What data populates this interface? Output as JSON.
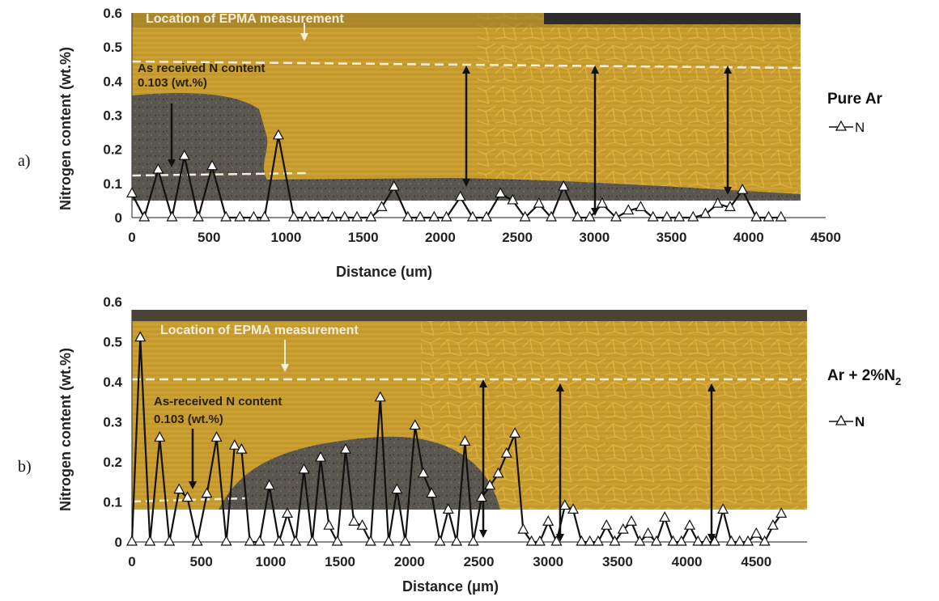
{
  "chart_data": [
    {
      "type": "line",
      "panel_label": "a)",
      "xlabel": "Distance (um)",
      "ylabel": "Nitrogen content (wt.%)",
      "xlim": [
        0,
        4500
      ],
      "ylim": [
        0,
        0.6
      ],
      "x_ticks": [
        0,
        500,
        1000,
        1500,
        2000,
        2500,
        3000,
        3500,
        4000,
        4500
      ],
      "y_ticks": [
        "0",
        "0.1",
        "0.2",
        "0.3",
        "0.4",
        "0.5",
        "0.6"
      ],
      "legend": {
        "title": "Pure Ar",
        "entry": "N",
        "placement": "right"
      },
      "annotations": {
        "epma": "Location of EPMA  measurement",
        "as_received_line1": "As received N content",
        "as_received_line2": "0.103 (wt.%)"
      },
      "background": "optical micrograph of weld cross-section",
      "series": [
        {
          "name": "N",
          "marker": "open-triangle",
          "x": [
            0,
            80,
            170,
            260,
            340,
            430,
            520,
            610,
            700,
            790,
            860,
            950,
            1050,
            1130,
            1210,
            1300,
            1380,
            1460,
            1550,
            1620,
            1700,
            1790,
            1870,
            1960,
            2040,
            2130,
            2210,
            2300,
            2390,
            2470,
            2550,
            2640,
            2720,
            2800,
            2890,
            2970,
            3050,
            3140,
            3220,
            3300,
            3380,
            3470,
            3550,
            3640,
            3720,
            3800,
            3880,
            3960,
            4050,
            4130,
            4210
          ],
          "y": [
            0.07,
            0.0,
            0.14,
            0.0,
            0.18,
            0.0,
            0.15,
            0.0,
            0.0,
            0.0,
            0.0,
            0.24,
            0.0,
            0.0,
            0.0,
            0.0,
            0.0,
            0.0,
            0.0,
            0.03,
            0.09,
            0.0,
            0.0,
            0.0,
            0.0,
            0.06,
            0.0,
            0.0,
            0.07,
            0.05,
            0.0,
            0.04,
            0.0,
            0.09,
            0.0,
            0.0,
            0.04,
            0.0,
            0.02,
            0.03,
            0.0,
            0.0,
            0.0,
            0.0,
            0.01,
            0.04,
            0.03,
            0.08,
            0.0,
            0.0,
            0.0
          ]
        }
      ]
    },
    {
      "type": "line",
      "panel_label": "b)",
      "xlabel": "Distance (μm)",
      "ylabel": "Nitrogen content (wt.%)",
      "xlim": [
        0,
        5000
      ],
      "ylim": [
        0,
        0.6
      ],
      "x_ticks": [
        0,
        500,
        1000,
        1500,
        2000,
        2500,
        3000,
        3500,
        4000,
        4500
      ],
      "y_ticks": [
        "0",
        "0.1",
        "0.2",
        "0.3",
        "0.4",
        "0.5",
        "0.6"
      ],
      "legend": {
        "title_main": "Ar + 2%N",
        "title_sub": "2",
        "entry": "N",
        "placement": "right"
      },
      "annotations": {
        "epma": "Location of EPMA measurement",
        "as_received_line1": "As-received N content",
        "as_received_line2": "0.103 (wt.%)"
      },
      "background": "optical micrograph of weld cross-section",
      "series": [
        {
          "name": "N",
          "marker": "open-triangle",
          "x": [
            0,
            60,
            130,
            200,
            270,
            340,
            400,
            470,
            540,
            610,
            680,
            740,
            790,
            850,
            920,
            990,
            1060,
            1120,
            1180,
            1240,
            1300,
            1360,
            1420,
            1480,
            1540,
            1600,
            1660,
            1720,
            1790,
            1850,
            1910,
            1970,
            2040,
            2100,
            2160,
            2220,
            2280,
            2340,
            2400,
            2460,
            2520,
            2580,
            2640,
            2700,
            2760,
            2820,
            2880,
            2940,
            3000,
            3060,
            3120,
            3180,
            3240,
            3300,
            3360,
            3420,
            3480,
            3540,
            3600,
            3660,
            3720,
            3780,
            3840,
            3900,
            3960,
            4020,
            4080,
            4140,
            4200,
            4260,
            4320,
            4380,
            4440,
            4500,
            4560,
            4620,
            4680
          ],
          "y": [
            0.0,
            0.51,
            0.0,
            0.26,
            0.0,
            0.13,
            0.11,
            0.0,
            0.12,
            0.26,
            0.0,
            0.24,
            0.23,
            0.0,
            0.0,
            0.14,
            0.0,
            0.07,
            0.0,
            0.18,
            0.0,
            0.21,
            0.04,
            0.0,
            0.23,
            0.05,
            0.04,
            0.0,
            0.36,
            0.0,
            0.13,
            0.0,
            0.29,
            0.17,
            0.12,
            0.0,
            0.08,
            0.0,
            0.25,
            0.0,
            0.11,
            0.14,
            0.17,
            0.22,
            0.27,
            0.03,
            0.0,
            0.0,
            0.05,
            0.0,
            0.09,
            0.08,
            0.0,
            0.0,
            0.0,
            0.04,
            0.0,
            0.03,
            0.05,
            0.0,
            0.02,
            0.0,
            0.06,
            0.0,
            0.0,
            0.04,
            0.0,
            0.0,
            0.0,
            0.08,
            0.0,
            0.0,
            0.0,
            0.02,
            0.0,
            0.04,
            0.07
          ]
        }
      ]
    }
  ]
}
